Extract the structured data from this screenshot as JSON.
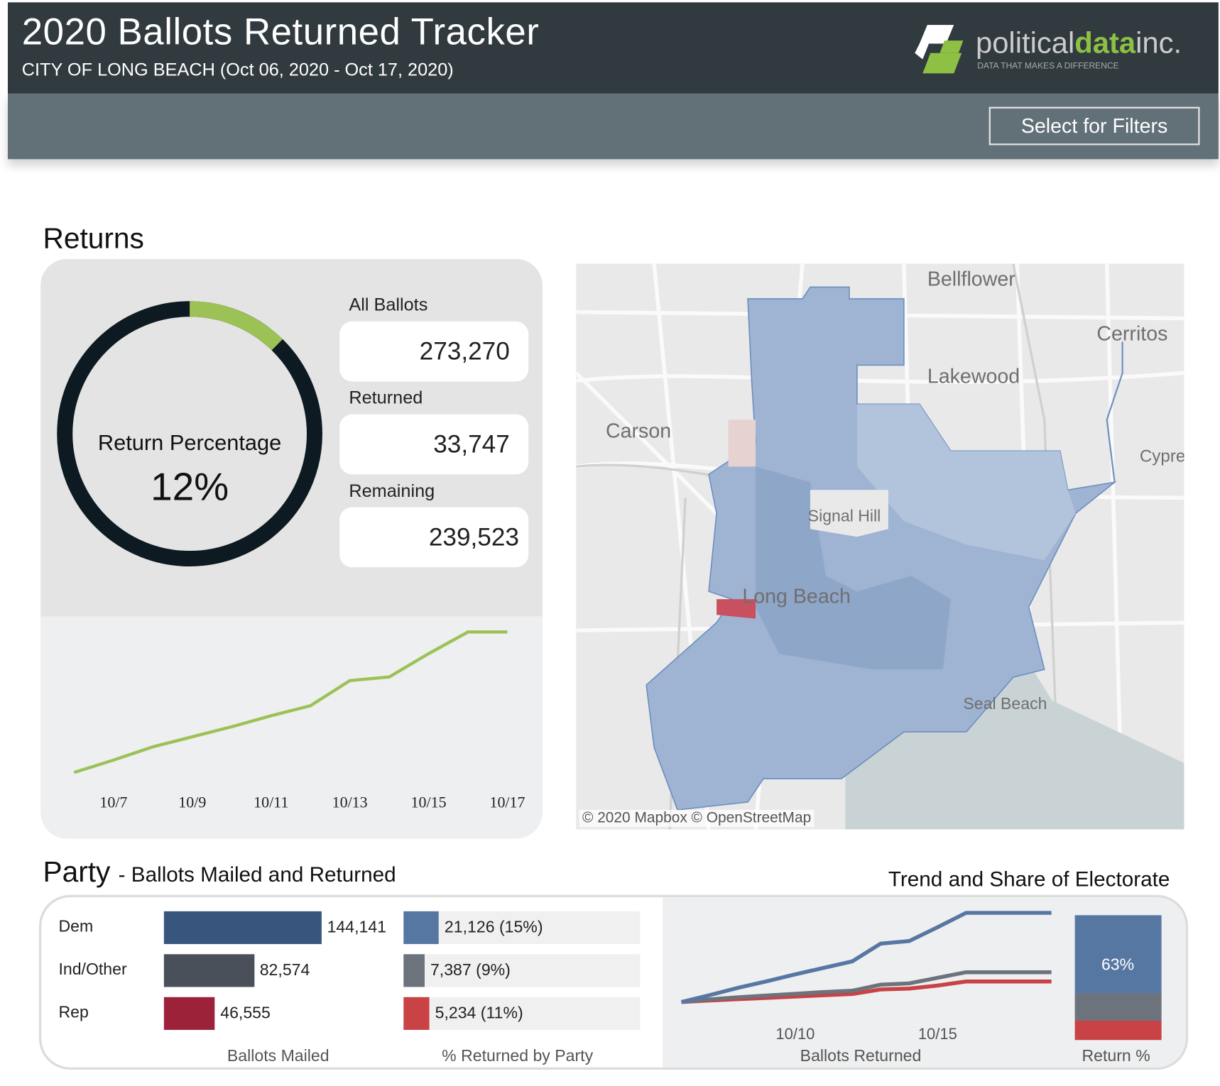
{
  "header": {
    "title": "2020 Ballots Returned Tracker",
    "subtitle": "CITY OF LONG BEACH (Oct 06, 2020 - Oct 17, 2020)",
    "logo_text_1": "political",
    "logo_text_2": "data",
    "logo_text_3": "inc.",
    "logo_tagline": "DATA THAT MAKES A DIFFERENCE",
    "filters_button": "Select for Filters"
  },
  "colors": {
    "header": "#313a3f",
    "band": "#627078",
    "green": "#9cc155",
    "donut": "#0d1a21",
    "dem": "#37557d",
    "dem_light": "#5777a3",
    "ind": "#4a505a",
    "ind_light": "#6c737c",
    "rep": "#9c2239",
    "rep_light": "#c84246"
  },
  "returns": {
    "heading": "Returns",
    "donut_label": "Return Percentage",
    "donut_value": "12%",
    "return_fraction": 0.1235,
    "kpis": [
      {
        "label": "All Ballots",
        "value": "273,270"
      },
      {
        "label": "Returned",
        "value": "33,747"
      },
      {
        "label": "Remaining",
        "value": "239,523"
      }
    ]
  },
  "map": {
    "labels": [
      "Bellflower",
      "Cerritos",
      "Lakewood",
      "Carson",
      "Cypre",
      "Signal Hill",
      "Long Beach",
      "Seal Beach"
    ],
    "attribution": "© 2020 Mapbox © OpenStreetMap"
  },
  "party": {
    "heading": "Party",
    "subheading": "- Ballots Mailed and Returned",
    "trend_heading": "Trend and Share of Electorate",
    "rows": [
      {
        "party": "Dem",
        "mailed": 144141,
        "mailed_label": "144,141",
        "returned_pct": 15,
        "returned_label": "21,126 (15%)"
      },
      {
        "party": "Ind/Other",
        "mailed": 82574,
        "mailed_label": "82,574",
        "returned_pct": 9,
        "returned_label": "7,387 (9%)"
      },
      {
        "party": "Rep",
        "mailed": 46555,
        "mailed_label": "46,555",
        "returned_pct": 11,
        "returned_label": "5,234 (11%)"
      }
    ],
    "axis_mailed": "Ballots Mailed",
    "axis_pct": "% Returned by Party",
    "axis_trend": "Ballots Returned",
    "axis_share": "Return %",
    "share_label": "63%"
  },
  "chart_data": [
    {
      "type": "line",
      "x": [
        "10/6",
        "10/7",
        "10/8",
        "10/9",
        "10/10",
        "10/11",
        "10/12",
        "10/13",
        "10/14",
        "10/15",
        "10/16",
        "10/17"
      ],
      "values": [
        3000,
        5700,
        8600,
        10800,
        13000,
        15400,
        17600,
        23100,
        23900,
        29000,
        33747,
        33747
      ],
      "tick_labels": [
        "10/7",
        "10/9",
        "10/11",
        "10/13",
        "10/15",
        "10/17"
      ],
      "color": "#9cc155",
      "grid": false
    },
    {
      "type": "line",
      "x": [
        "10/6",
        "10/7",
        "10/8",
        "10/9",
        "10/10",
        "10/11",
        "10/12",
        "10/13",
        "10/14",
        "10/15",
        "10/16",
        "10/17",
        "10/18",
        "10/19"
      ],
      "tick_labels": [
        "10/10",
        "10/15"
      ],
      "xlabel": "Ballots Returned",
      "grid": false,
      "series": [
        {
          "party": "Dem",
          "color": "#5777a3",
          "values": [
            500,
            2100,
            3800,
            5300,
            6900,
            8400,
            9900,
            14000,
            14600,
            17800,
            21126,
            21126,
            21126,
            21126
          ]
        },
        {
          "party": "Ind/Other",
          "color": "#6c737c",
          "values": [
            500,
            1100,
            1600,
            2000,
            2400,
            2800,
            3100,
            4500,
            4800,
            6100,
            7387,
            7387,
            7387,
            7387
          ]
        },
        {
          "party": "Rep",
          "color": "#c84246",
          "values": [
            500,
            850,
            1150,
            1450,
            1750,
            2050,
            2350,
            3400,
            3600,
            4300,
            5234,
            5234,
            5234,
            5234
          ]
        }
      ]
    },
    {
      "type": "bar",
      "stacked": true,
      "xlabel": "Return %",
      "categories": [
        "Dem",
        "Ind/Other",
        "Rep"
      ],
      "values": [
        62.6,
        21.9,
        15.5
      ],
      "data_labels": [
        "63%"
      ]
    }
  ]
}
